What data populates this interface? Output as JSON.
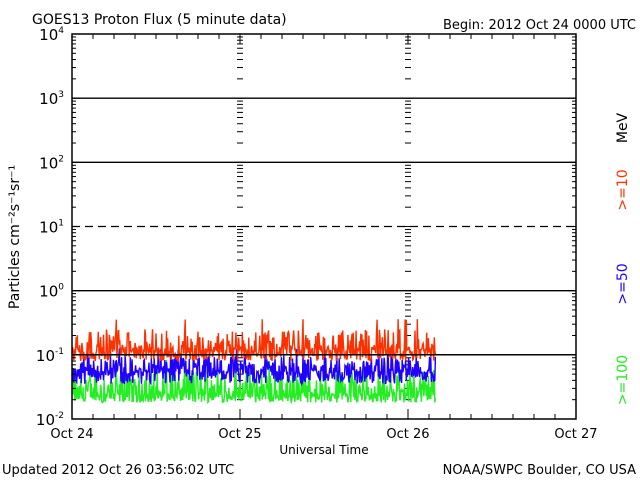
{
  "chart_data": {
    "type": "line",
    "title": "GOES13 Proton Flux (5 minute data)",
    "begin_label": "Begin: 2012 Oct 24 0000 UTC",
    "xlabel": "Universal Time",
    "ylabel": "Particles cm⁻²s⁻¹sr⁻¹",
    "yscale": "log",
    "ylim": [
      0.01,
      10000
    ],
    "y_ticks": [
      {
        "value": 10000,
        "label": "10",
        "exp": "4"
      },
      {
        "value": 1000,
        "label": "10",
        "exp": "3"
      },
      {
        "value": 100,
        "label": "10",
        "exp": "2"
      },
      {
        "value": 10,
        "label": "10",
        "exp": "1"
      },
      {
        "value": 1,
        "label": "10",
        "exp": "0"
      },
      {
        "value": 0.1,
        "label": "10",
        "exp": "-1"
      },
      {
        "value": 0.01,
        "label": "10",
        "exp": "-2"
      }
    ],
    "threshold_line": {
      "value": 10,
      "style": "dashed"
    },
    "x_unit": "hours since 2012 Oct 24 00:00 UTC",
    "xlim": [
      0,
      72
    ],
    "x_ticks": [
      {
        "value": 0,
        "label": "Oct 24"
      },
      {
        "value": 24,
        "label": "Oct 25"
      },
      {
        "value": 48,
        "label": "Oct 26"
      },
      {
        "value": 72,
        "label": "Oct 27"
      }
    ],
    "data_end_hour": 51.93,
    "sample_interval_minutes": 5,
    "series": [
      {
        "name": ">=10 MeV",
        "label": ">=10",
        "color": "#ff3000",
        "typical_range": [
          0.08,
          0.25
        ],
        "median": 0.12,
        "max": 0.35
      },
      {
        "name": ">=50 MeV",
        "label": ">=50",
        "color": "#2000ff",
        "typical_range": [
          0.035,
          0.1
        ],
        "median": 0.055,
        "max": 0.12
      },
      {
        "name": ">=100 MeV",
        "label": ">=100",
        "color": "#22ee22",
        "typical_range": [
          0.018,
          0.06
        ],
        "median": 0.025,
        "max": 0.08
      }
    ],
    "unit_label": "MeV",
    "legend": "right"
  },
  "footer": {
    "updated": "Updated 2012 Oct 26 03:56:02 UTC",
    "source": "NOAA/SWPC Boulder, CO USA"
  }
}
